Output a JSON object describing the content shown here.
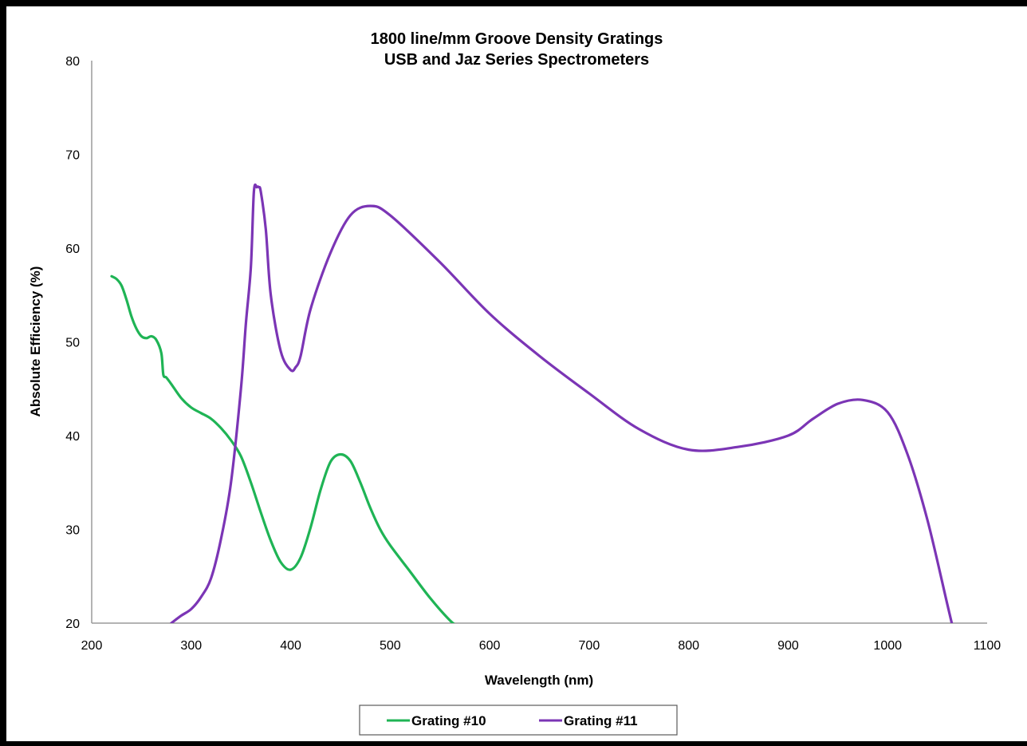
{
  "chart_data": {
    "type": "line",
    "title": "1800 line/mm Groove Density Gratings",
    "subtitle": "USB and Jaz Series Spectrometers",
    "xlabel": "Wavelength (nm)",
    "ylabel": "Absolute Efficiency (%)",
    "xlim": [
      200,
      1100
    ],
    "ylim": [
      20,
      80
    ],
    "xticks": [
      "200",
      "300",
      "400",
      "500",
      "600",
      "700",
      "800",
      "900",
      "1000",
      "1100"
    ],
    "yticks": [
      "20",
      "30",
      "40",
      "50",
      "60",
      "70",
      "80"
    ],
    "grid": false,
    "legend_position": "bottom",
    "series": [
      {
        "name": "Grating #10",
        "color": "#1fb455",
        "x": [
          220,
          225,
          230,
          235,
          240,
          245,
          250,
          255,
          260,
          265,
          270,
          272,
          275,
          280,
          290,
          300,
          310,
          320,
          330,
          340,
          350,
          360,
          370,
          380,
          390,
          400,
          410,
          420,
          430,
          440,
          450,
          460,
          470,
          480,
          490,
          500,
          520,
          540,
          560,
          570
        ],
        "y": [
          57,
          56.7,
          56,
          54.5,
          52.7,
          51.4,
          50.6,
          50.4,
          50.6,
          50.2,
          48.8,
          46.5,
          46.2,
          45.5,
          44,
          43,
          42.4,
          41.8,
          40.8,
          39.5,
          37.8,
          35,
          31.8,
          28.8,
          26.5,
          25.7,
          27,
          30.2,
          34.2,
          37.2,
          38,
          37.3,
          35,
          32.3,
          30,
          28.3,
          25.5,
          22.7,
          20.3,
          19.5
        ]
      },
      {
        "name": "Grating #11",
        "color": "#7b35b5",
        "x": [
          280,
          290,
          300,
          310,
          320,
          330,
          340,
          350,
          355,
          360,
          363,
          366,
          368,
          370,
          375,
          380,
          390,
          400,
          405,
          410,
          420,
          440,
          460,
          480,
          500,
          550,
          600,
          650,
          700,
          750,
          800,
          850,
          900,
          925,
          950,
          975,
          1000,
          1020,
          1040,
          1060,
          1070
        ],
        "y": [
          20,
          20.8,
          21.5,
          22.8,
          24.8,
          29,
          35,
          45,
          52,
          58,
          66,
          66.5,
          66.5,
          66,
          62,
          55,
          49,
          47,
          47.3,
          48.5,
          53.5,
          59.5,
          63.5,
          64.5,
          63.5,
          58.5,
          53,
          48.5,
          44.5,
          40.7,
          38.5,
          38.8,
          40,
          41.8,
          43.4,
          43.8,
          42.5,
          38,
          31,
          22,
          17.5
        ]
      }
    ]
  }
}
